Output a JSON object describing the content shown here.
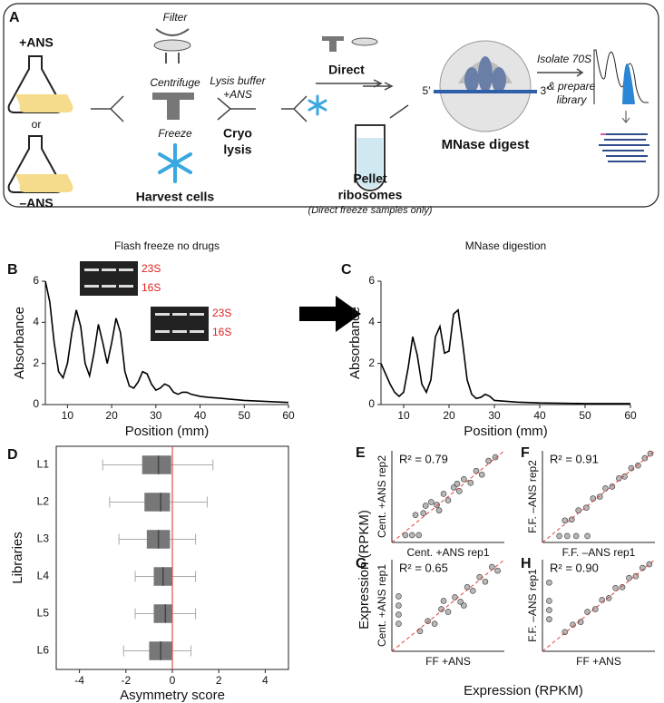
{
  "figure": {
    "panel_labels": [
      "A",
      "B",
      "C",
      "D",
      "E",
      "F",
      "G",
      "H"
    ],
    "shared_ylabel": "Expression (RPKM)",
    "shared_xlabel": "Expression (RPKM)",
    "gel_labels": [
      "23S",
      "16S",
      "23S",
      "16S"
    ]
  },
  "diagram": {
    "plus_ans": "+ANS",
    "or": "or",
    "minus_ans": "–ANS",
    "filter": "Filter",
    "centrifuge": "Centrifuge",
    "freeze": "Freeze",
    "harvest": "Harvest cells",
    "lysis_buffer": [
      "Lysis buffer",
      "+ANS"
    ],
    "cryo": [
      "Cryo",
      "lysis"
    ],
    "direct": "Direct",
    "pellet": [
      "Pellet",
      "ribosomes"
    ],
    "pellet_note": "(Direct freeze samples only)",
    "five_prime": "5′",
    "three_prime": "3′",
    "mnase": "MNase digest",
    "isolate": [
      "Isolate 70S",
      "& prepare",
      "library"
    ]
  },
  "chart_data": [
    {
      "type": "line",
      "title": "Flash freeze no drugs",
      "xlabel": "Position (mm)",
      "ylabel": "Absorbance",
      "x": [
        5,
        6,
        7,
        8,
        9,
        10,
        11,
        12,
        13,
        14,
        15,
        16,
        17,
        18,
        19,
        20,
        21,
        22,
        23,
        24,
        25,
        26,
        27,
        28,
        29,
        30,
        31,
        32,
        33,
        34,
        35,
        36,
        37,
        38,
        40,
        42,
        45,
        50,
        55,
        60
      ],
      "series": [
        {
          "color": "#000000",
          "values": [
            6.0,
            5.0,
            3.0,
            1.6,
            1.3,
            2.0,
            3.5,
            4.6,
            3.8,
            2.0,
            1.4,
            2.5,
            3.9,
            3.0,
            2.0,
            3.0,
            4.2,
            3.5,
            1.6,
            0.9,
            0.8,
            1.1,
            1.6,
            1.5,
            1.0,
            0.7,
            0.8,
            1.0,
            0.9,
            0.6,
            0.5,
            0.6,
            0.6,
            0.5,
            0.4,
            0.35,
            0.3,
            0.2,
            0.15,
            0.1
          ]
        }
      ],
      "xlim": [
        5,
        60
      ],
      "ylim": [
        0,
        6
      ],
      "xticks": [
        10,
        20,
        30,
        40,
        50,
        60
      ],
      "yticks": [
        0,
        2,
        4,
        6
      ]
    },
    {
      "type": "line",
      "title": "MNase digestion",
      "xlabel": "Position (mm)",
      "ylabel": "Absorbance",
      "x": [
        5,
        6,
        7,
        8,
        9,
        10,
        11,
        12,
        13,
        14,
        15,
        16,
        17,
        18,
        19,
        20,
        21,
        22,
        23,
        24,
        25,
        26,
        27,
        28,
        29,
        30,
        35,
        40,
        50,
        60
      ],
      "series": [
        {
          "color": "#000000",
          "values": [
            2.0,
            1.5,
            1.0,
            0.6,
            0.4,
            0.6,
            1.8,
            3.3,
            2.4,
            1.0,
            0.6,
            1.2,
            3.3,
            3.8,
            2.5,
            2.6,
            4.4,
            4.6,
            3.0,
            1.2,
            0.5,
            0.3,
            0.35,
            0.5,
            0.4,
            0.2,
            0.12,
            0.08,
            0.05,
            0.05
          ]
        }
      ],
      "xlim": [
        5,
        60
      ],
      "ylim": [
        0,
        6
      ],
      "xticks": [
        10,
        20,
        30,
        40,
        50,
        60
      ],
      "yticks": [
        0,
        2,
        4,
        6
      ]
    },
    {
      "type": "box",
      "xlabel": "Asymmetry score",
      "ylabel": "Libraries",
      "categories": [
        "L1",
        "L2",
        "L3",
        "L4",
        "L5",
        "L6"
      ],
      "whislo": [
        -3.0,
        -2.7,
        -2.3,
        -1.6,
        -1.6,
        -2.1
      ],
      "q1": [
        -1.3,
        -1.2,
        -1.1,
        -0.8,
        -0.8,
        -1.0
      ],
      "med": [
        -0.6,
        -0.5,
        -0.6,
        -0.4,
        -0.3,
        -0.5
      ],
      "q3": [
        -0.05,
        -0.1,
        -0.1,
        0.0,
        0.0,
        0.0
      ],
      "whishi": [
        1.75,
        1.5,
        1.0,
        1.0,
        1.0,
        0.8
      ],
      "color": "#777777",
      "refline": 0,
      "refline_color": "#e05050",
      "xlim": [
        -5,
        5
      ],
      "xticks": [
        -4,
        -2,
        0,
        2,
        4
      ]
    },
    {
      "type": "scatter",
      "xlabel": "Cent. +ANS rep1",
      "ylabel": "Cent. +ANS rep2",
      "annotation": "R² = 0.79",
      "x": [
        2.1,
        2.8,
        3.5,
        4.0,
        4.6,
        5.0,
        5.5,
        6.0,
        6.4,
        7.0,
        7.5,
        8.0,
        8.6,
        9.2,
        3.0,
        4.2,
        5.8,
        1.2,
        1.8,
        2.4
      ],
      "values": [
        3.0,
        3.2,
        4.4,
        4.1,
        5.3,
        4.6,
        6.0,
        5.6,
        6.9,
        6.5,
        7.8,
        7.4,
        8.9,
        9.3,
        4.0,
        3.5,
        6.4,
        0.8,
        0.8,
        0.8
      ],
      "xlim": [
        0,
        10
      ],
      "ylim": [
        0,
        10
      ],
      "diagonal": true,
      "color": "#888888"
    },
    {
      "type": "scatter",
      "xlabel": "F.F. –ANS rep1",
      "ylabel": "F.F. –ANS rep2",
      "annotation": "R² = 0.91",
      "x": [
        2.0,
        2.6,
        3.2,
        3.9,
        4.5,
        5.1,
        5.6,
        6.2,
        6.8,
        7.3,
        7.9,
        8.5,
        9.1,
        9.6,
        1.5,
        2.2,
        3.0,
        4.0
      ],
      "values": [
        2.4,
        2.5,
        3.5,
        3.8,
        4.8,
        5.0,
        5.9,
        6.1,
        7.0,
        7.2,
        8.1,
        8.4,
        9.2,
        9.7,
        0.7,
        0.7,
        0.7,
        0.7
      ],
      "xlim": [
        0,
        10
      ],
      "ylim": [
        0,
        10
      ],
      "diagonal": true,
      "color": "#888888"
    },
    {
      "type": "scatter",
      "xlabel": "FF +ANS",
      "ylabel": "Cent. +ANS rep1",
      "annotation": "R² = 0.65",
      "x": [
        2.5,
        3.2,
        3.8,
        4.4,
        5.0,
        5.6,
        6.1,
        6.7,
        7.2,
        7.8,
        8.3,
        8.9,
        9.4,
        0.6,
        0.6,
        0.6,
        0.6,
        4.6,
        6.4
      ],
      "values": [
        2.2,
        3.3,
        3.0,
        4.6,
        4.3,
        5.9,
        5.4,
        7.0,
        6.6,
        8.1,
        7.6,
        9.2,
        8.8,
        3.0,
        4.0,
        5.0,
        6.0,
        5.5,
        5.0
      ],
      "xlim": [
        0,
        10
      ],
      "ylim": [
        0,
        10
      ],
      "diagonal": true,
      "color": "#888888"
    },
    {
      "type": "scatter",
      "xlabel": "FF +ANS",
      "ylabel": "F.F. –ANS rep1",
      "annotation": "R² = 0.90",
      "x": [
        2.0,
        2.7,
        3.4,
        4.0,
        4.7,
        5.3,
        5.9,
        6.5,
        7.1,
        7.7,
        8.3,
        8.9,
        9.5,
        0.6,
        0.6,
        0.6,
        0.6
      ],
      "values": [
        2.1,
        2.9,
        3.2,
        4.3,
        4.6,
        5.6,
        5.8,
        6.9,
        7.0,
        8.0,
        8.2,
        9.1,
        9.5,
        3.5,
        4.5,
        5.5,
        7.5
      ],
      "xlim": [
        0,
        10
      ],
      "ylim": [
        0,
        10
      ],
      "diagonal": true,
      "color": "#888888"
    }
  ]
}
